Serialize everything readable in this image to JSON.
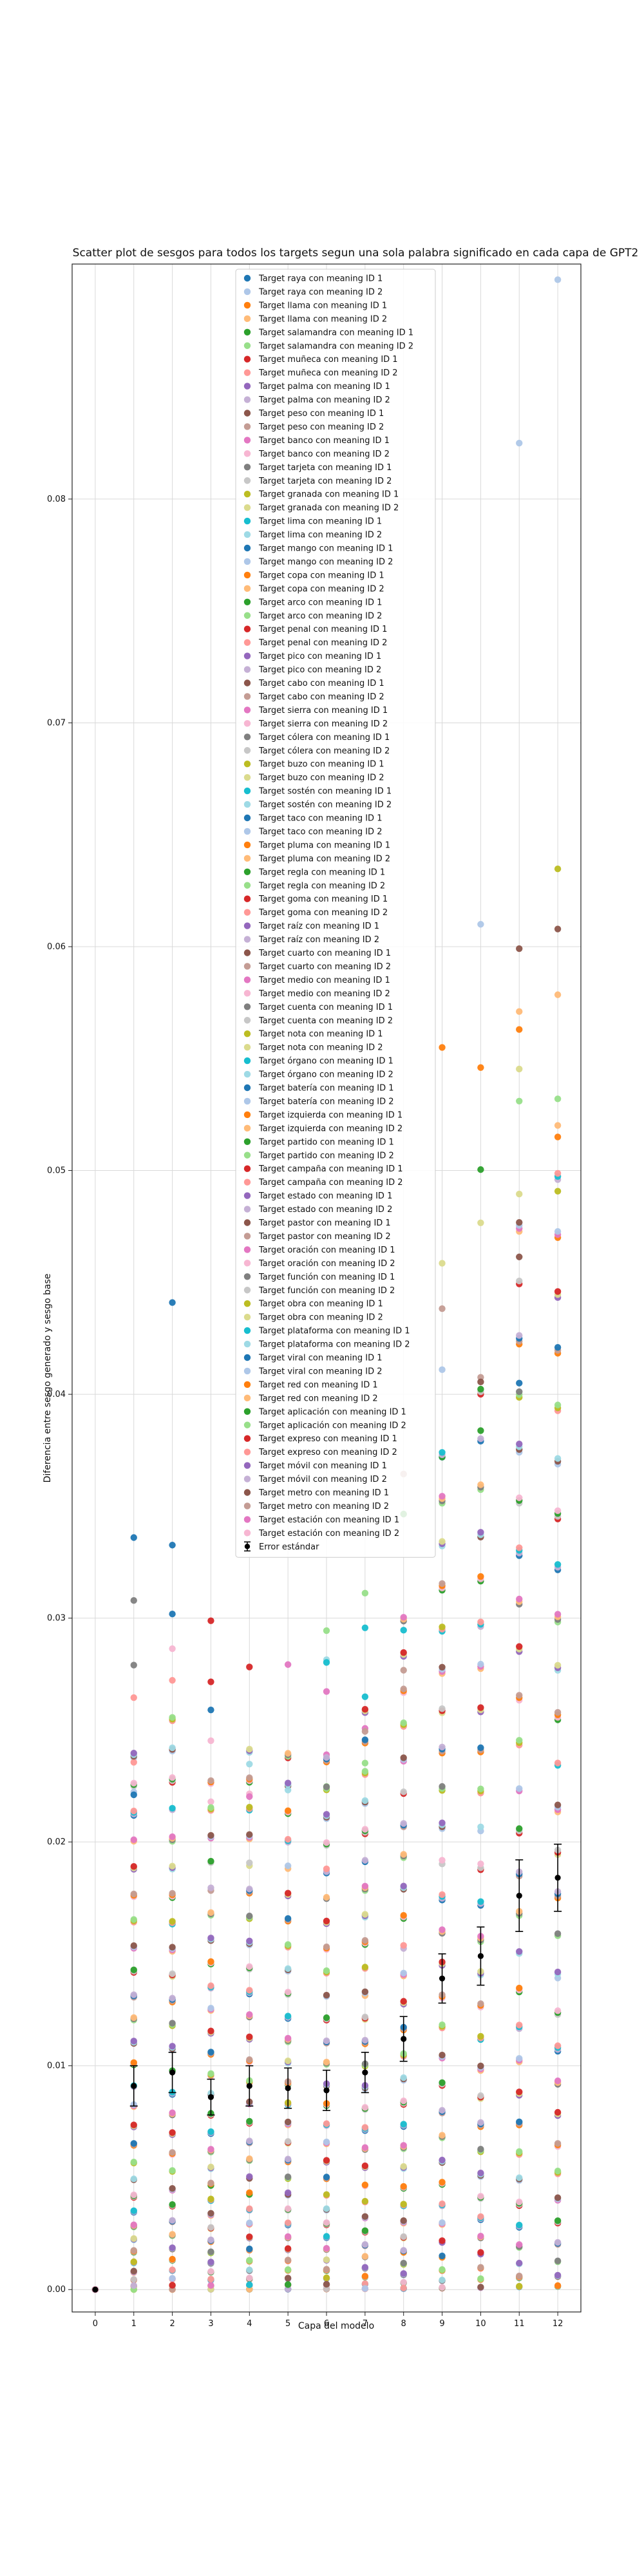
{
  "chart_data": {
    "type": "scatter",
    "title": "Scatter plot de sesgos para todos los targets segun una sola palabra significado en cada capa de GPT2",
    "xlabel": "Capa del modelo",
    "ylabel": "Diferencia entre sesgo generado y sesgo base",
    "x_ticks": [
      0,
      1,
      2,
      3,
      4,
      5,
      6,
      7,
      8,
      9,
      10,
      11,
      12
    ],
    "y_ticks": [
      0.0,
      0.01,
      0.02,
      0.03,
      0.04,
      0.05,
      0.06,
      0.07,
      0.08
    ],
    "y_tick_labels": [
      "0.00",
      "0.01",
      "0.02",
      "0.03",
      "0.04",
      "0.05",
      "0.06",
      "0.07",
      "0.08"
    ],
    "xlim": [
      -0.6,
      12.6
    ],
    "ylim": [
      -0.001,
      0.0905
    ],
    "grid": true,
    "legend_placement": "upper center",
    "layers": [
      0,
      1,
      2,
      3,
      4,
      5,
      6,
      7,
      8,
      9,
      10,
      11,
      12
    ],
    "means": [
      0.0,
      0.0091,
      0.0097,
      0.0086,
      0.0091,
      0.009,
      0.0089,
      0.0097,
      0.0112,
      0.0139,
      0.0149,
      0.0176,
      0.0184
    ],
    "errors": [
      0.0,
      0.0009,
      0.0009,
      0.0008,
      0.0009,
      0.0009,
      0.0009,
      0.0009,
      0.001,
      0.0011,
      0.0013,
      0.0016,
      0.0015
    ],
    "errorbar_label": "Error estándar",
    "palette": [
      "#1f77b4",
      "#aec7e8",
      "#ff7f0e",
      "#ffbb78",
      "#2ca02c",
      "#98df8a",
      "#d62728",
      "#ff9896",
      "#9467bd",
      "#c5b0d5",
      "#8c564b",
      "#c49c94",
      "#e377c2",
      "#f7b6d2",
      "#7f7f7f",
      "#c7c7c7",
      "#bcbd22",
      "#dbdb8d",
      "#17becf",
      "#9edae5"
    ],
    "series_names": [
      "Target raya con meaning ID 1",
      "Target raya con meaning ID 2",
      "Target llama con meaning ID 1",
      "Target llama con meaning ID 2",
      "Target salamandra con meaning ID 1",
      "Target salamandra con meaning ID 2",
      "Target muñeca con meaning ID 1",
      "Target muñeca con meaning ID 2",
      "Target palma con meaning ID 1",
      "Target palma con meaning ID 2",
      "Target peso con meaning ID 1",
      "Target peso con meaning ID 2",
      "Target banco con meaning ID 1",
      "Target banco con meaning ID 2",
      "Target tarjeta con meaning ID 1",
      "Target tarjeta con meaning ID 2",
      "Target granada con meaning ID 1",
      "Target granada con meaning ID 2",
      "Target lima con meaning ID 1",
      "Target lima con meaning ID 2",
      "Target mango con meaning ID 1",
      "Target mango con meaning ID 2",
      "Target copa con meaning ID 1",
      "Target copa con meaning ID 2",
      "Target arco con meaning ID 1",
      "Target arco con meaning ID 2",
      "Target penal con meaning ID 1",
      "Target penal con meaning ID 2",
      "Target pico con meaning ID 1",
      "Target pico con meaning ID 2",
      "Target cabo con meaning ID 1",
      "Target cabo con meaning ID 2",
      "Target sierra con meaning ID 1",
      "Target sierra con meaning ID 2",
      "Target cólera con meaning ID 1",
      "Target cólera con meaning ID 2",
      "Target buzo con meaning ID 1",
      "Target buzo con meaning ID 2",
      "Target sostén con meaning ID 1",
      "Target sostén con meaning ID 2",
      "Target taco con meaning ID 1",
      "Target taco con meaning ID 2",
      "Target pluma con meaning ID 1",
      "Target pluma con meaning ID 2",
      "Target regla con meaning ID 1",
      "Target regla con meaning ID 2",
      "Target goma con meaning ID 1",
      "Target goma con meaning ID 2",
      "Target raíz con meaning ID 1",
      "Target raíz con meaning ID 2",
      "Target cuarto con meaning ID 1",
      "Target cuarto con meaning ID 2",
      "Target medio con meaning ID 1",
      "Target medio con meaning ID 2",
      "Target cuenta con meaning ID 1",
      "Target cuenta con meaning ID 2",
      "Target nota con meaning ID 1",
      "Target nota con meaning ID 2",
      "Target órgano con meaning ID 1",
      "Target órgano con meaning ID 2",
      "Target batería con meaning ID 1",
      "Target batería con meaning ID 2",
      "Target izquierda con meaning ID 1",
      "Target izquierda con meaning ID 2",
      "Target partido con meaning ID 1",
      "Target partido con meaning ID 2",
      "Target campaña con meaning ID 1",
      "Target campaña con meaning ID 2",
      "Target estado con meaning ID 1",
      "Target estado con meaning ID 2",
      "Target pastor con meaning ID 1",
      "Target pastor con meaning ID 2",
      "Target oración con meaning ID 1",
      "Target oración con meaning ID 2",
      "Target función con meaning ID 1",
      "Target función con meaning ID 2",
      "Target obra con meaning ID 1",
      "Target obra con meaning ID 2",
      "Target plataforma con meaning ID 1",
      "Target plataforma con meaning ID 2",
      "Target viral con meaning ID 1",
      "Target viral con meaning ID 2",
      "Target red con meaning ID 1",
      "Target red con meaning ID 2",
      "Target aplicación con meaning ID 1",
      "Target aplicación con meaning ID 2",
      "Target expreso con meaning ID 1",
      "Target expreso con meaning ID 2",
      "Target móvil con meaning ID 1",
      "Target móvil con meaning ID 2",
      "Target metro con meaning ID 1",
      "Target metro con meaning ID 2",
      "Target estación con meaning ID 1",
      "Target estación con meaning ID 2"
    ],
    "notable_points": [
      {
        "series": "Target raya con meaning ID 2",
        "layer": 12,
        "value": 0.0898
      },
      {
        "series": "Target raya con meaning ID 2",
        "layer": 11,
        "value": 0.0825
      },
      {
        "series": "Target raya con meaning ID 2",
        "layer": 10,
        "value": 0.061
      },
      {
        "series": "Target llama con meaning ID 1",
        "layer": 9,
        "value": 0.0555
      },
      {
        "series": "Target llama con meaning ID 1",
        "layer": 10,
        "value": 0.0546
      },
      {
        "series": "Target llama con meaning ID 1",
        "layer": 11,
        "value": 0.0563
      },
      {
        "series": "Target llama con meaning ID 1",
        "layer": 12,
        "value": 0.0515
      },
      {
        "series": "Target llama con meaning ID 1",
        "layer": 12,
        "value": 0.047
      },
      {
        "series": "Target salamandra con meaning ID 2",
        "layer": 11,
        "value": 0.0531
      },
      {
        "series": "Target salamandra con meaning ID 2",
        "layer": 12,
        "value": 0.0532
      },
      {
        "series": "Target raya con meaning ID 1",
        "layer": 2,
        "value": 0.0441
      },
      {
        "series": "Target raya con meaning ID 2",
        "layer": 9,
        "value": 0.0411
      },
      {
        "series": "Target raya con meaning ID 1",
        "layer": 11,
        "value": 0.0405
      },
      {
        "series": "Target raya con meaning ID 1",
        "layer": 1,
        "value": 0.0336
      }
    ]
  }
}
